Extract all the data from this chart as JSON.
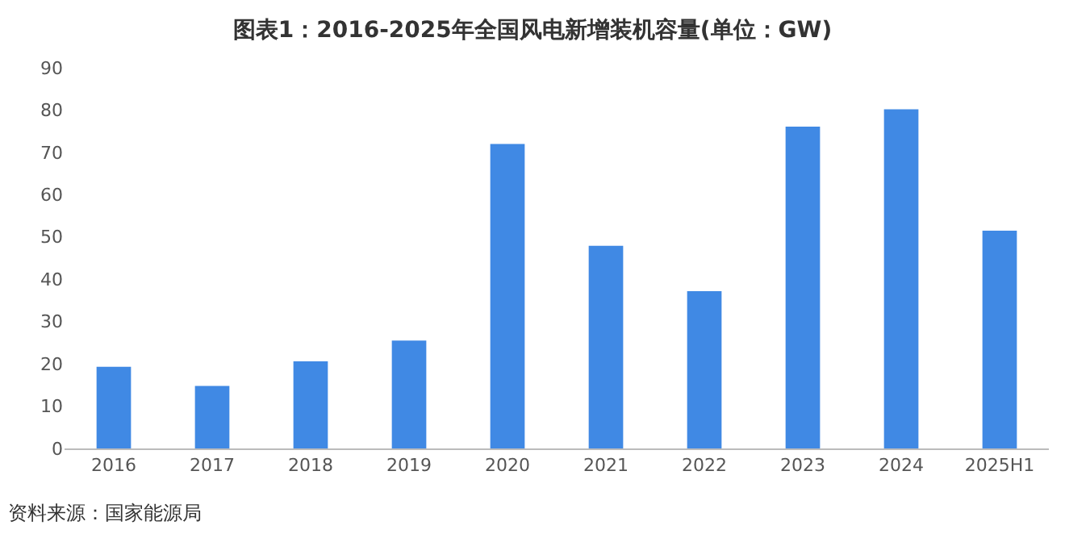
{
  "chart_data": {
    "type": "bar",
    "title": "图表1：2016-2025年全国风电新增装机容量(单位：GW)",
    "categories": [
      "2016",
      "2017",
      "2018",
      "2019",
      "2020",
      "2021",
      "2022",
      "2023",
      "2024",
      "2025H1"
    ],
    "values": [
      19.3,
      14.8,
      20.6,
      25.5,
      72,
      47.9,
      37.2,
      76.1,
      80.2,
      51.5
    ],
    "color": "#4089e4",
    "ylim": [
      0,
      90
    ],
    "yticks": [
      0,
      10,
      20,
      30,
      40,
      50,
      60,
      70,
      80,
      90
    ],
    "grid": false,
    "annotations": [
      "资料来源：国家能源局"
    ]
  }
}
